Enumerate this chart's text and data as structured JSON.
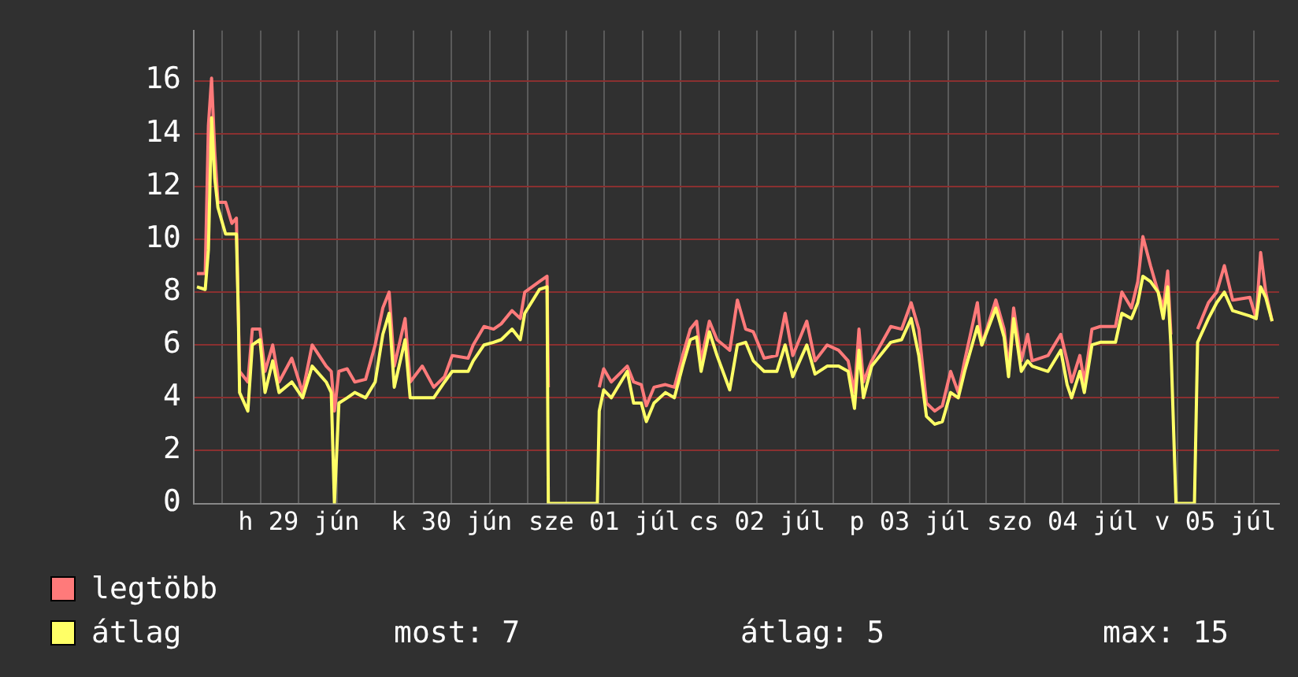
{
  "chart_data": {
    "type": "line",
    "x": [
      "--06-28T20:00",
      "--06-28T21:18",
      "--06-28T21:48",
      "--06-28T22:18",
      "--06-28T22:48",
      "--06-28T23:18",
      "--06-29T00:30",
      "--06-29T01:30",
      "--06-29T02:12",
      "--06-29T02:30",
      "--06-29T02:42",
      "--06-29T04:00",
      "--06-29T04:42",
      "--06-29T05:54",
      "--06-29T06:42",
      "--06-29T07:54",
      "--06-29T08:54",
      "--06-29T10:54",
      "--06-29T12:36",
      "--06-29T14:06",
      "--06-29T16:18",
      "--06-29T17:06",
      "--06-29T17:36",
      "--06-29T18:18",
      "--06-29T19:36",
      "--06-29T20:48",
      "--06-29T22:30",
      "--06-30T00:00",
      "--06-30T01:12",
      "--06-30T02:12",
      "--06-30T03:00",
      "--06-30T04:42",
      "--06-30T05:30",
      "--06-30T07:24",
      "--06-30T09:12",
      "--06-30T10:54",
      "--06-30T12:06",
      "--06-30T14:36",
      "--06-30T15:24",
      "--06-30T17:06",
      "--06-30T18:36",
      "--06-30T19:48",
      "--06-30T21:30",
      "--06-30T22:48",
      "--06-30T23:30",
      "--07-01T01:48",
      "--07-01T03:00",
      "--07-01T03:12",
      "--07-01T03:30",
      "--07-01T10:54",
      "--07-01T11:12",
      "--07-01T11:54",
      "--07-01T13:06",
      "--07-01T15:36",
      "--07-01T16:36",
      "--07-01T17:48",
      "--07-01T18:36",
      "--07-01T19:48",
      "--07-01T21:36",
      "--07-01T23:00",
      "--07-02T00:18",
      "--07-02T01:30",
      "--07-02T02:30",
      "--07-02T03:12",
      "--07-02T04:30",
      "--07-02T05:42",
      "--07-02T07:42",
      "--07-02T08:54",
      "--07-02T10:12",
      "--07-02T11:24",
      "--07-02T13:06",
      "--07-02T15:06",
      "--07-02T16:24",
      "--07-02T17:36",
      "--07-02T19:48",
      "--07-02T21:06",
      "--07-02T23:00",
      "--07-03T00:48",
      "--07-03T02:18",
      "--07-03T03:18",
      "--07-03T04:00",
      "--07-03T04:42",
      "--07-03T06:00",
      "--07-03T09:00",
      "--07-03T10:42",
      "--07-03T12:12",
      "--07-03T13:24",
      "--07-03T14:36",
      "--07-03T15:54",
      "--07-03T17:06",
      "--07-03T18:24",
      "--07-03T19:36",
      "--07-03T20:36",
      "--07-03T22:36",
      "--07-03T23:18",
      "--07-04T01:30",
      "--07-04T02:48",
      "--07-04T03:30",
      "--07-04T04:18",
      "--07-04T05:30",
      "--07-04T06:30",
      "--07-04T07:12",
      "--07-04T09:42",
      "--07-04T11:42",
      "--07-04T12:42",
      "--07-04T13:24",
      "--07-04T14:42",
      "--07-04T15:24",
      "--07-04T16:36",
      "--07-04T17:54",
      "--07-04T20:18",
      "--07-04T21:18",
      "--07-04T22:48",
      "--07-04T23:48",
      "--07-05T00:36",
      "--07-05T01:48",
      "--07-05T03:00",
      "--07-05T03:48",
      "--07-05T04:30",
      "--07-05T05:00",
      "--07-05T05:48",
      "--07-05T08:42",
      "--07-05T09:12",
      "--07-05T10:54",
      "--07-05T12:12",
      "--07-05T13:24",
      "--07-05T14:42",
      "--07-05T17:24",
      "--07-05T18:24",
      "--07-05T19:06",
      "--07-05T19:54",
      "--07-05T20:54"
    ],
    "series": [
      {
        "name": "legtöbb",
        "color": "#ff7a7a",
        "values": [
          8.7,
          8.7,
          14.3,
          16.1,
          13.3,
          11.4,
          11.4,
          10.6,
          10.8,
          7.2,
          5.0,
          4.6,
          6.6,
          6.6,
          5.0,
          6.0,
          4.6,
          5.5,
          4.2,
          6.0,
          5.2,
          5.0,
          3.5,
          5.0,
          5.1,
          4.6,
          4.7,
          6.0,
          7.4,
          8.0,
          5.2,
          7.0,
          4.6,
          5.2,
          4.4,
          4.8,
          5.6,
          5.5,
          6.0,
          6.7,
          6.6,
          6.8,
          7.3,
          7.0,
          8.0,
          8.4,
          8.6,
          4.4,
          null,
          null,
          4.4,
          5.1,
          4.6,
          5.2,
          4.6,
          4.5,
          3.7,
          4.4,
          4.5,
          4.4,
          5.6,
          6.6,
          6.9,
          5.4,
          6.9,
          6.2,
          5.8,
          7.7,
          6.6,
          6.5,
          5.5,
          5.6,
          7.2,
          5.6,
          6.9,
          5.4,
          6.0,
          5.8,
          5.4,
          4.2,
          6.6,
          4.6,
          5.4,
          6.7,
          6.6,
          7.6,
          6.6,
          3.8,
          3.5,
          3.7,
          5.0,
          4.2,
          5.4,
          7.6,
          6.0,
          7.7,
          6.6,
          5.1,
          7.4,
          5.4,
          6.4,
          5.4,
          5.6,
          6.4,
          5.4,
          4.6,
          5.6,
          4.6,
          6.6,
          6.7,
          6.7,
          8.0,
          7.4,
          8.4,
          10.1,
          9.0,
          8.0,
          7.4,
          8.8,
          6.4,
          null,
          null,
          6.6,
          7.6,
          8.0,
          9.0,
          7.7,
          7.8,
          7.0,
          9.5,
          8.0,
          6.9
        ]
      },
      {
        "name": "átlag",
        "color": "#ffff66",
        "values": [
          8.2,
          8.1,
          9.6,
          14.6,
          12.3,
          11.2,
          10.2,
          10.2,
          10.2,
          7.2,
          4.2,
          3.5,
          6.0,
          6.2,
          4.2,
          5.4,
          4.2,
          4.6,
          4.0,
          5.2,
          4.6,
          4.2,
          0,
          3.8,
          4.0,
          4.2,
          4.0,
          4.6,
          6.4,
          7.2,
          4.4,
          6.2,
          4.0,
          4.0,
          4.0,
          4.6,
          5.0,
          5.0,
          5.4,
          6.0,
          6.1,
          6.2,
          6.6,
          6.2,
          7.2,
          8.1,
          8.2,
          0,
          0,
          0,
          3.5,
          4.3,
          4.0,
          5.0,
          3.8,
          3.8,
          3.1,
          3.8,
          4.2,
          4.0,
          5.2,
          6.2,
          6.3,
          5.0,
          6.5,
          5.6,
          4.3,
          6.0,
          6.1,
          5.4,
          5.0,
          5.0,
          6.0,
          4.8,
          6.0,
          4.9,
          5.2,
          5.2,
          5.0,
          3.6,
          5.8,
          4.0,
          5.2,
          6.1,
          6.2,
          7.0,
          5.6,
          3.3,
          3.0,
          3.1,
          4.2,
          4.0,
          5.0,
          6.7,
          6.0,
          7.4,
          6.3,
          4.8,
          7.0,
          5.0,
          5.4,
          5.2,
          5.0,
          5.8,
          4.5,
          4.0,
          5.0,
          4.2,
          6.0,
          6.1,
          6.1,
          7.2,
          7.0,
          7.6,
          8.6,
          8.4,
          8.0,
          7.0,
          8.2,
          6.0,
          0,
          0,
          6.1,
          7.0,
          7.6,
          8.0,
          7.3,
          7.1,
          7.0,
          8.2,
          7.8,
          6.9
        ]
      }
    ],
    "xlim": [
      "--06-28T19:30",
      "--07-05T22:00"
    ],
    "xticks": [
      {
        "value": "--06-29T00:00",
        "label": null
      },
      {
        "value": "--06-29T06:00",
        "label": null
      },
      {
        "value": "--06-29T12:00",
        "label": "h 29 jún"
      },
      {
        "value": "--06-29T18:00",
        "label": null
      },
      {
        "value": "--06-30T00:00",
        "label": null
      },
      {
        "value": "--06-30T06:00",
        "label": null
      },
      {
        "value": "--06-30T12:00",
        "label": "k 30 jún"
      },
      {
        "value": "--06-30T18:00",
        "label": null
      },
      {
        "value": "--07-01T00:00",
        "label": null
      },
      {
        "value": "--07-01T06:00",
        "label": null
      },
      {
        "value": "--07-01T12:00",
        "label": "sze 01 júl"
      },
      {
        "value": "--07-01T18:00",
        "label": null
      },
      {
        "value": "--07-02T00:00",
        "label": null
      },
      {
        "value": "--07-02T06:00",
        "label": null
      },
      {
        "value": "--07-02T12:00",
        "label": "cs 02 júl"
      },
      {
        "value": "--07-02T18:00",
        "label": null
      },
      {
        "value": "--07-03T00:00",
        "label": null
      },
      {
        "value": "--07-03T06:00",
        "label": null
      },
      {
        "value": "--07-03T12:00",
        "label": "p 03 júl"
      },
      {
        "value": "--07-03T18:00",
        "label": null
      },
      {
        "value": "--07-04T00:00",
        "label": null
      },
      {
        "value": "--07-04T06:00",
        "label": null
      },
      {
        "value": "--07-04T12:00",
        "label": "szo 04 júl"
      },
      {
        "value": "--07-04T18:00",
        "label": null
      },
      {
        "value": "--07-05T00:00",
        "label": null
      },
      {
        "value": "--07-05T06:00",
        "label": null
      },
      {
        "value": "--07-05T12:00",
        "label": "v 05 júl"
      },
      {
        "value": "--07-05T18:00",
        "label": null
      }
    ],
    "ylim": [
      0,
      17.9
    ],
    "yticks": [
      0,
      2,
      4,
      6,
      8,
      10,
      12,
      14,
      16
    ],
    "grid": true,
    "legend": "bottom",
    "annotations": [
      "most: 7",
      "átlag: 5",
      "max: 15"
    ]
  }
}
